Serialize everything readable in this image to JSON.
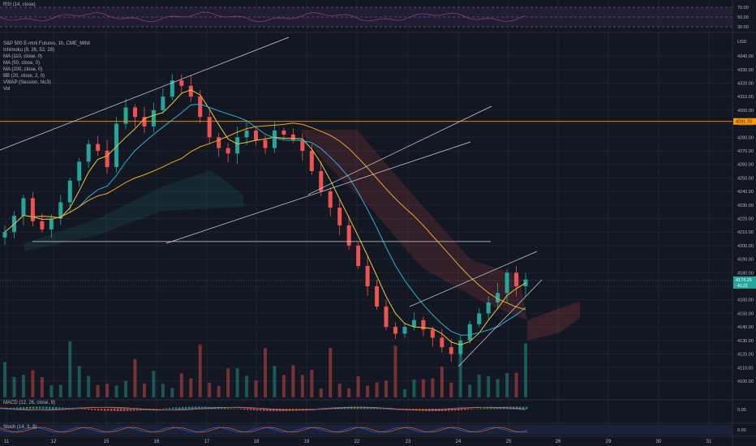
{
  "pane_labels": {
    "rsi": "RSI (14, close)",
    "macd": "MACD (12, 26, close, 9)",
    "stoch": "Stoch (14, 3, 3)"
  },
  "legend": {
    "symbol": "S&P 500 E-mini Futures, 1h, CME_MINI",
    "indicators": [
      "Ichimoku (9, 26, 52, 26)",
      "MA (110, close, 0)",
      "MA (50, close, 0)",
      "MA (200, close, 0)",
      "BB (20, close, 2, 0)",
      "VWAP (Session, hlc3)",
      "Vol"
    ]
  },
  "colors": {
    "background": "#131722",
    "grid": "#1f2330",
    "up": "#26a69a",
    "down": "#ef5350",
    "ma_fast": "#e8c93a",
    "ma_mid": "#26b3d6",
    "ma_slow": "#f0a72c",
    "horizontal_level": "#ff9800",
    "current_price": "#26a69a",
    "rsi_line": "#8b3a8b",
    "trendline": "#d1d4dc"
  },
  "chart_data": {
    "type": "candlestick",
    "symbol": "S&P 500 E-mini Futures",
    "interval": "1h",
    "exchange": "CME_MINI",
    "price_unit": "USD",
    "x_ticks": [
      "11",
      "12",
      "15",
      "16",
      "17",
      "18",
      "19",
      "22",
      "23",
      "24",
      "25",
      "26",
      "29",
      "30",
      "31"
    ],
    "y_ticks": [
      4100,
      4110,
      4120,
      4130,
      4140,
      4150,
      4160,
      4170,
      4180,
      4190,
      4200,
      4210,
      4220,
      4230,
      4240,
      4250,
      4260,
      4270,
      4280,
      4290,
      4300,
      4310,
      4320,
      4330,
      4340
    ],
    "ylim": [
      4088,
      4355
    ],
    "current_price": "4174.25",
    "current_price_sub": "41:22",
    "horizontal_level": "4291.70",
    "support_level": 4203,
    "closes": [
      4210,
      4222,
      4235,
      4218,
      4212,
      4220,
      4232,
      4248,
      4262,
      4275,
      4270,
      4258,
      4290,
      4302,
      4295,
      4288,
      4300,
      4310,
      4322,
      4318,
      4310,
      4295,
      4280,
      4272,
      4268,
      4280,
      4285,
      4278,
      4272,
      4285,
      4282,
      4278,
      4270,
      4255,
      4240,
      4228,
      4215,
      4200,
      4185,
      4170,
      4155,
      4140,
      4135,
      4140,
      4145,
      4138,
      4132,
      4125,
      4120,
      4130,
      4142,
      4150,
      4158,
      4165,
      4180,
      4170,
      4175
    ],
    "series": [
      {
        "name": "MA (50, close, 0)"
      },
      {
        "name": "MA (110, close, 0)"
      },
      {
        "name": "MA (200, close, 0)"
      }
    ],
    "rsi": {
      "levels": [
        "70.00",
        "50.00",
        "30.00"
      ]
    },
    "macd": {
      "levels": [
        "0.00"
      ]
    },
    "stoch": {
      "levels": [
        "0.00"
      ]
    }
  }
}
